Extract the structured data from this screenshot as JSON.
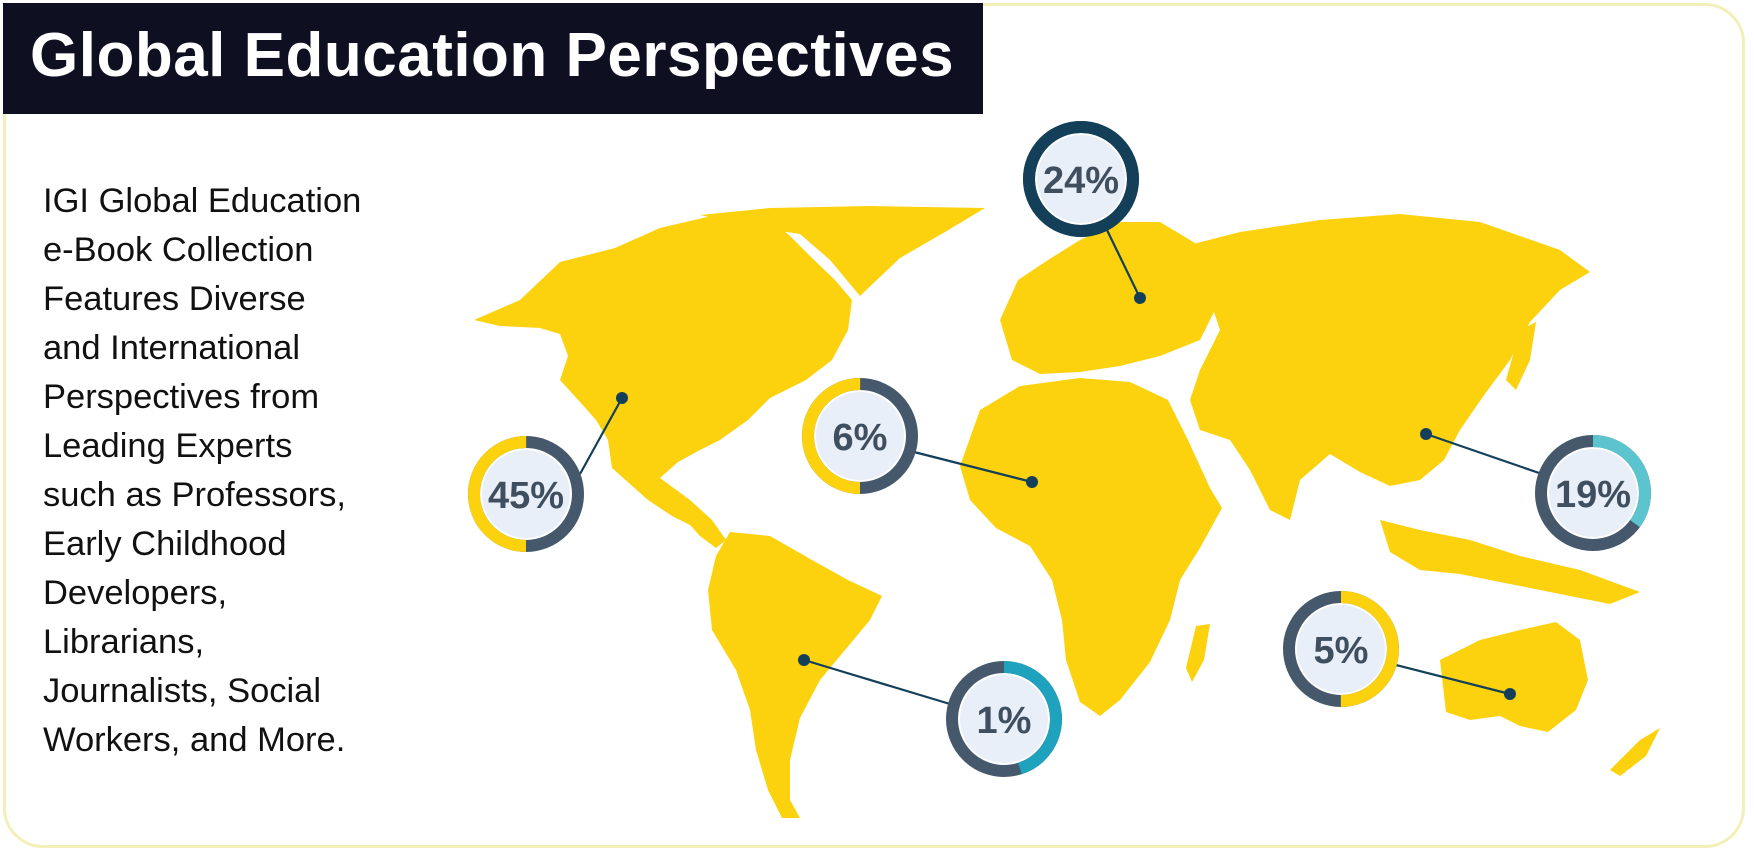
{
  "title": "Global Education Perspectives",
  "description_lines": [
    "IGI Global Education",
    "e-Book Collection",
    "Features Diverse",
    "and International",
    "Perspectives from",
    "Leading Experts",
    "such as Professors,",
    "Early Childhood",
    "Developers,",
    "Librarians,",
    "Journalists, Social",
    "Workers, and More."
  ],
  "colors": {
    "title_bg": "#0e0f20",
    "map": "#fcd20e",
    "ring_track": "#46586b",
    "ring_yellow": "#fcd20e",
    "ring_dark_teal": "#133f59",
    "ring_light_teal": "#5bc4cf",
    "ring_teal": "#1ea2be",
    "circle_fill": "#e9eff8",
    "label_text": "#3f4f60"
  },
  "stats": [
    {
      "region": "North America",
      "label": "45%",
      "value": 45,
      "accent": "ring_yellow"
    },
    {
      "region": "Europe",
      "label": "24%",
      "value": 24,
      "accent": "ring_dark_teal"
    },
    {
      "region": "Africa",
      "label": "6%",
      "value": 6,
      "accent": "ring_yellow"
    },
    {
      "region": "Asia",
      "label": "19%",
      "value": 19,
      "accent": "ring_light_teal"
    },
    {
      "region": "South America",
      "label": "1%",
      "value": 1,
      "accent": "ring_teal"
    },
    {
      "region": "Australia",
      "label": "5%",
      "value": 5,
      "accent": "ring_yellow"
    }
  ]
}
